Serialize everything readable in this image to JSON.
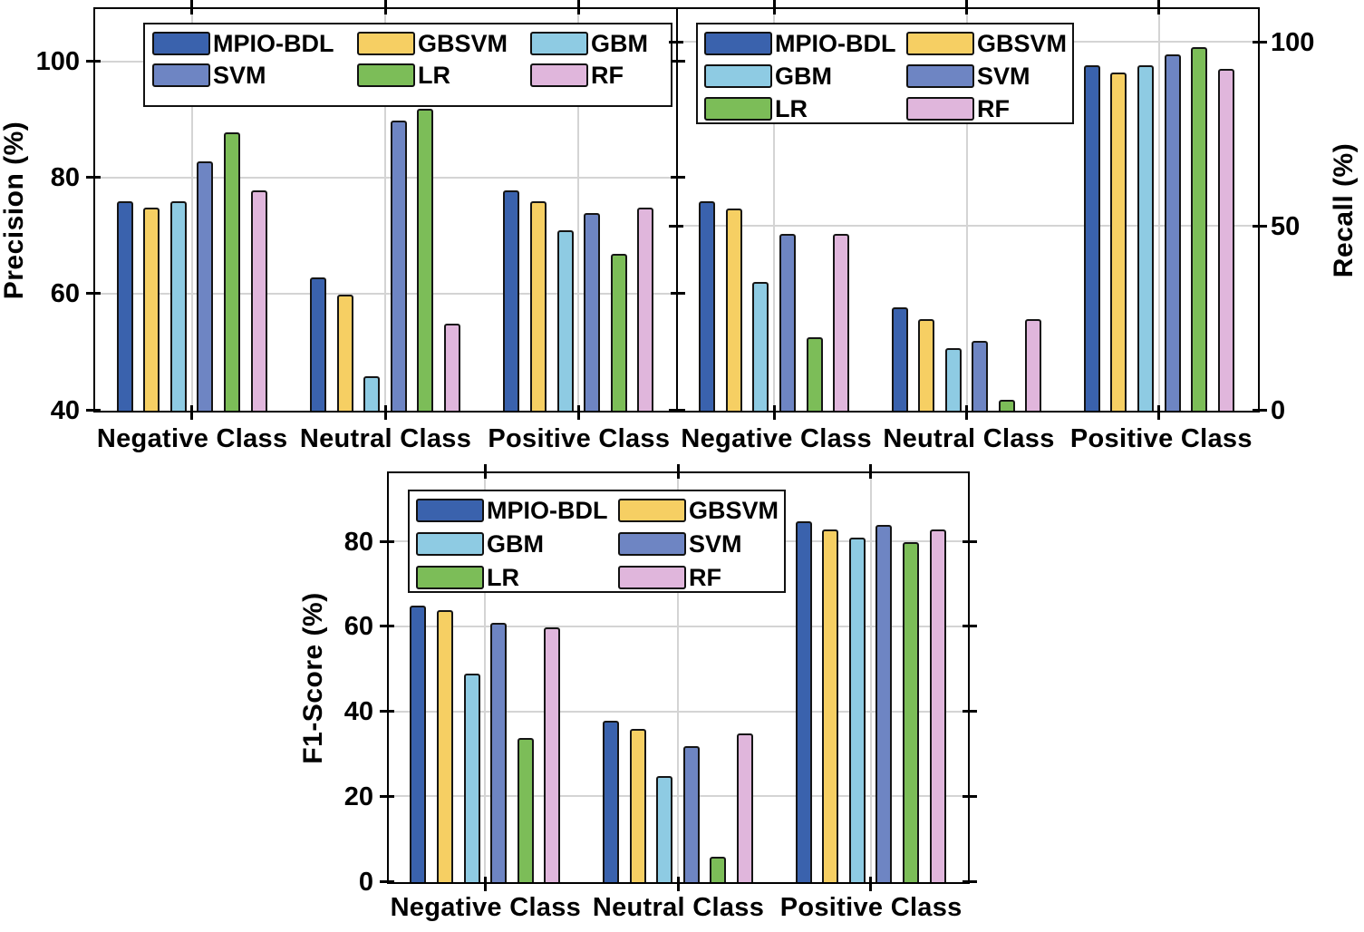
{
  "figure": {
    "background": "#ffffff",
    "axis_color": "#000000",
    "grid_color": "#d4d4d4",
    "bar_border_color": "#151515",
    "series_colors": {
      "MPIO-BDL": "#3a62ad",
      "GBSVM": "#f6cf63",
      "GBM": "#8ecbe3",
      "SVM": "#6e85c3",
      "LR": "#7cbd58",
      "RF": "#e0b6dc"
    }
  },
  "chart_data": [
    {
      "type": "bar",
      "name": "precision",
      "ylabel": "Precision (%)",
      "yaxis_side": "left",
      "ylim": [
        40,
        109
      ],
      "yticks": [
        40,
        60,
        80,
        100
      ],
      "grid": true,
      "legend_position": "top-left-inside",
      "legend_columns": 3,
      "categories": [
        "Negative Class",
        "Neutral Class",
        "Positive Class"
      ],
      "series": [
        {
          "name": "MPIO-BDL",
          "color": "#3a62ad",
          "values": [
            76,
            63,
            78
          ]
        },
        {
          "name": "GBSVM",
          "color": "#f6cf63",
          "values": [
            75,
            60,
            76
          ]
        },
        {
          "name": "GBM",
          "color": "#8ecbe3",
          "values": [
            76,
            46,
            71
          ]
        },
        {
          "name": "SVM",
          "color": "#6e85c3",
          "values": [
            83,
            90,
            74
          ]
        },
        {
          "name": "LR",
          "color": "#7cbd58",
          "values": [
            88,
            92,
            67
          ]
        },
        {
          "name": "RF",
          "color": "#e0b6dc",
          "values": [
            78,
            55,
            75
          ]
        }
      ]
    },
    {
      "type": "bar",
      "name": "recall",
      "ylabel": "Recall (%)",
      "yaxis_side": "right",
      "ylim": [
        0,
        109
      ],
      "yticks": [
        0,
        50,
        100
      ],
      "grid": true,
      "legend_position": "top-left-inside",
      "legend_columns": 2,
      "categories": [
        "Negative Class",
        "Neutral Class",
        "Positive Class"
      ],
      "series": [
        {
          "name": "MPIO-BDL",
          "color": "#3a62ad",
          "values": [
            57,
            28,
            94
          ]
        },
        {
          "name": "GBSVM",
          "color": "#f6cf63",
          "values": [
            55,
            25,
            92
          ]
        },
        {
          "name": "GBM",
          "color": "#8ecbe3",
          "values": [
            35,
            17,
            94
          ]
        },
        {
          "name": "SVM",
          "color": "#6e85c3",
          "values": [
            48,
            19,
            97
          ]
        },
        {
          "name": "LR",
          "color": "#7cbd58",
          "values": [
            20,
            3,
            99
          ]
        },
        {
          "name": "RF",
          "color": "#e0b6dc",
          "values": [
            48,
            25,
            93
          ]
        }
      ]
    },
    {
      "type": "bar",
      "name": "f1-score",
      "ylabel": "F1-Score (%)",
      "yaxis_side": "left",
      "ylim": [
        0,
        96
      ],
      "yticks": [
        0,
        20,
        40,
        60,
        80
      ],
      "grid": true,
      "legend_position": "top-left-inside",
      "legend_columns": 2,
      "categories": [
        "Negative Class",
        "Neutral Class",
        "Positive Class"
      ],
      "series": [
        {
          "name": "MPIO-BDL",
          "color": "#3a62ad",
          "values": [
            65,
            38,
            85
          ]
        },
        {
          "name": "GBSVM",
          "color": "#f6cf63",
          "values": [
            64,
            36,
            83
          ]
        },
        {
          "name": "GBM",
          "color": "#8ecbe3",
          "values": [
            49,
            25,
            81
          ]
        },
        {
          "name": "SVM",
          "color": "#6e85c3",
          "values": [
            61,
            32,
            84
          ]
        },
        {
          "name": "LR",
          "color": "#7cbd58",
          "values": [
            34,
            6,
            80
          ]
        },
        {
          "name": "RF",
          "color": "#e0b6dc",
          "values": [
            60,
            35,
            83
          ]
        }
      ]
    }
  ]
}
